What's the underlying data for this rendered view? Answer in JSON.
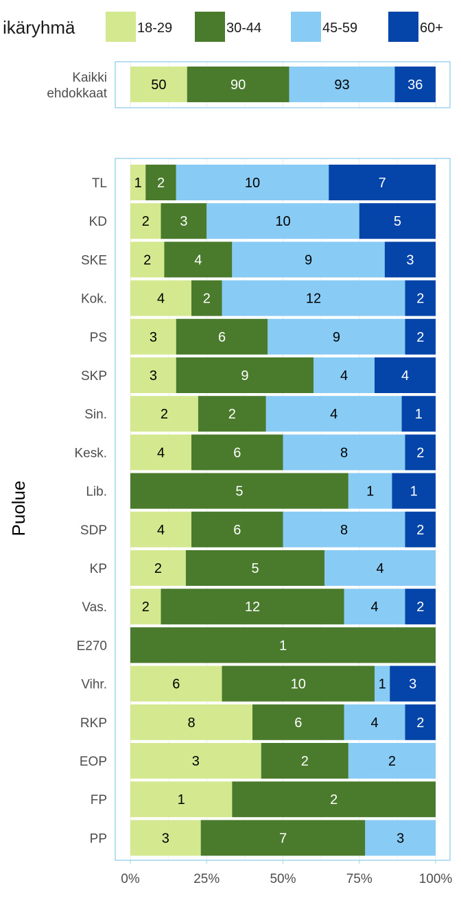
{
  "chart_data": {
    "type": "bar",
    "orientation": "horizontal",
    "stacked": "percent",
    "legend": {
      "title": "ikäryhmä",
      "position": "top"
    },
    "xlabel": "",
    "ylabel": "Puolue",
    "xlim": [
      0,
      100
    ],
    "ticks": [
      "0%",
      "25%",
      "50%",
      "75%",
      "100%"
    ],
    "tick_values": [
      0,
      25,
      50,
      75,
      100
    ],
    "grid": true,
    "series": [
      {
        "name": "18-29",
        "color": "#d4e98f"
      },
      {
        "name": "30-44",
        "color": "#4a7a2c"
      },
      {
        "name": "45-59",
        "color": "#88ccf5"
      },
      {
        "name": "60+",
        "color": "#0544a8"
      }
    ],
    "panels": [
      {
        "categories": [
          "Kaikki\nehdokkaat"
        ],
        "values": [
          [
            50,
            90,
            93,
            36
          ]
        ]
      },
      {
        "categories": [
          "TL",
          "KD",
          "SKE",
          "Kok.",
          "PS",
          "SKP",
          "Sin.",
          "Kesk.",
          "Lib.",
          "SDP",
          "KP",
          "Vas.",
          "E270",
          "Vihr.",
          "RKP",
          "EOP",
          "FP",
          "PP"
        ],
        "values": [
          [
            1,
            2,
            10,
            7
          ],
          [
            2,
            3,
            10,
            5
          ],
          [
            2,
            4,
            9,
            3
          ],
          [
            4,
            2,
            12,
            2
          ],
          [
            3,
            6,
            9,
            2
          ],
          [
            3,
            9,
            4,
            4
          ],
          [
            2,
            2,
            4,
            1
          ],
          [
            4,
            6,
            8,
            2
          ],
          [
            0,
            5,
            1,
            1
          ],
          [
            4,
            6,
            8,
            2
          ],
          [
            2,
            5,
            4,
            0
          ],
          [
            2,
            12,
            4,
            2
          ],
          [
            0,
            1,
            0,
            0
          ],
          [
            6,
            10,
            1,
            3
          ],
          [
            8,
            6,
            4,
            2
          ],
          [
            3,
            2,
            2,
            0
          ],
          [
            1,
            2,
            0,
            0
          ],
          [
            3,
            7,
            3,
            0
          ]
        ]
      }
    ]
  }
}
